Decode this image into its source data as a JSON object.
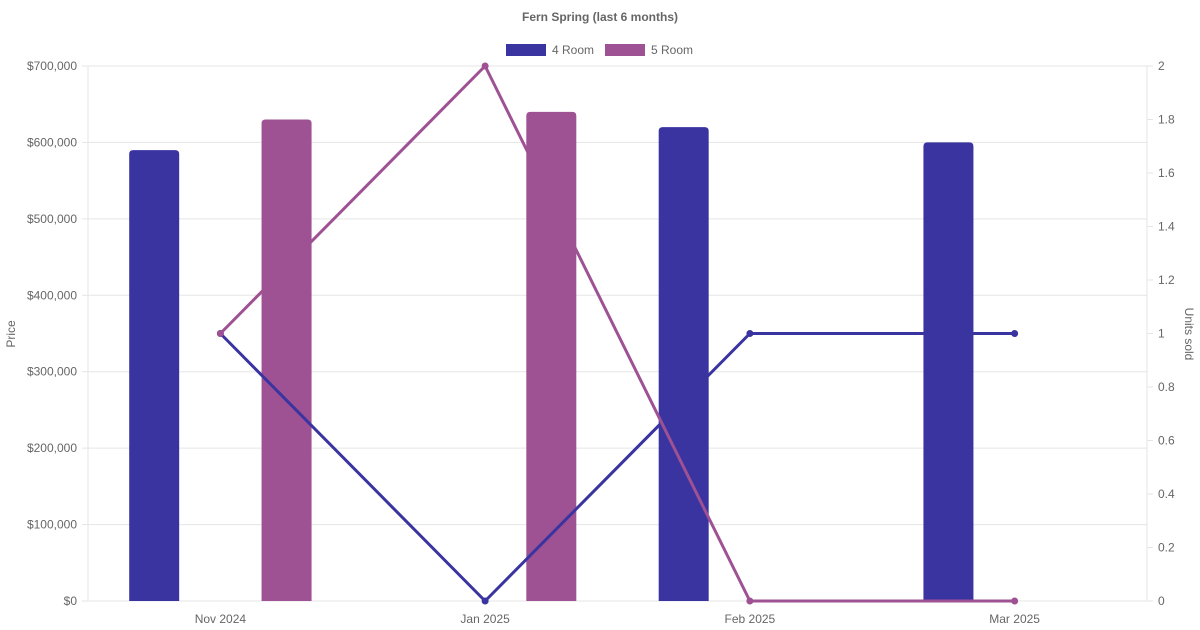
{
  "chart_data": {
    "type": "bar",
    "title": "Fern Spring (last 6 months)",
    "categories": [
      "Nov 2024",
      "Jan 2025",
      "Feb 2025",
      "Mar 2025"
    ],
    "y_left": {
      "label": "Price",
      "ylim": [
        0,
        700000
      ],
      "ticks": [
        "$0",
        "$100,000",
        "$200,000",
        "$300,000",
        "$400,000",
        "$500,000",
        "$600,000",
        "$700,000"
      ]
    },
    "y_right": {
      "label": "Units sold",
      "ylim": [
        0,
        2
      ],
      "ticks": [
        "0",
        "0.2",
        "0.4",
        "0.6",
        "0.8",
        "1",
        "1.2",
        "1.4",
        "1.6",
        "1.8",
        "2"
      ]
    },
    "series": [
      {
        "name": "4 Room",
        "color": "#3a34a0",
        "price": [
          590000,
          null,
          620000,
          600000
        ],
        "units": [
          1,
          0,
          1,
          1
        ]
      },
      {
        "name": "5 Room",
        "color": "#9e5193",
        "price": [
          630000,
          640000,
          null,
          null
        ],
        "units": [
          1,
          2,
          0,
          0
        ]
      }
    ],
    "legend_position": "top",
    "grid": true
  }
}
